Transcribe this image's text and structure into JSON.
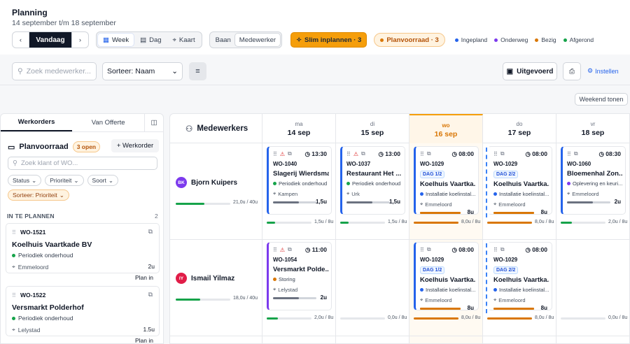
{
  "header": {
    "title": "Planning",
    "subtitle": "14 september t/m 18 september"
  },
  "toolbar": {
    "prev_icon": "chevron-left",
    "today_label": "Vandaag",
    "next_icon": "chevron-right",
    "views": [
      {
        "label": "Week",
        "icon": "grid-icon"
      },
      {
        "label": "Dag",
        "icon": "calendar-icon"
      },
      {
        "label": "Kaart",
        "icon": "map-pin-icon"
      }
    ],
    "active_view": "Week",
    "modes": [
      "Baan",
      "Medewerker"
    ],
    "active_mode": "Medewerker",
    "slim_label": "Slim inplannen · 3",
    "pool_label": "Planvoorraad · 3",
    "legend": [
      {
        "label": "Ingepland",
        "color": "#2563eb"
      },
      {
        "label": "Onderweg",
        "color": "#7c3aed"
      },
      {
        "label": "Bezig",
        "color": "#d97706"
      },
      {
        "label": "Afgerond",
        "color": "#16a34a"
      }
    ]
  },
  "controls": {
    "search_placeholder": "Zoek medewerker...",
    "sort_label": "Sorteer: Naam",
    "done_label": "Uitgevoerd",
    "settings_label": "Instellen",
    "weekend_label": "Weekend tonen"
  },
  "sidebar": {
    "tabs": [
      "Werkorders",
      "Van Offerte"
    ],
    "title": "Planvoorraad",
    "open_badge": "3 open",
    "add_label": "+ Werkorder",
    "search_placeholder": "Zoek klant of WO...",
    "filters": [
      "Status",
      "Prioriteit",
      "Soort"
    ],
    "sort_chip": "Sorteer: Prioriteit",
    "section_label": "IN TE PLANNEN",
    "section_count": "2",
    "items": [
      {
        "number": "WO-1521",
        "name": "Koelhuis Vaartkade BV",
        "type": "Periodiek onderhoud",
        "location": "Emmeloord",
        "hours": "2u",
        "action": "Plan in"
      },
      {
        "number": "WO-1522",
        "name": "Versmarkt Polderhof",
        "type": "Periodiek onderhoud",
        "location": "Lelystad",
        "hours": "1.5u",
        "action": "Plan in"
      }
    ]
  },
  "grid": {
    "employees_label": "Medewerkers",
    "days": [
      {
        "name": "ma",
        "date": "14 sep",
        "today": false
      },
      {
        "name": "di",
        "date": "15 sep",
        "today": false
      },
      {
        "name": "wo",
        "date": "16 sep",
        "today": true
      },
      {
        "name": "do",
        "date": "17 sep",
        "today": false
      },
      {
        "name": "vr",
        "date": "18 sep",
        "today": false
      }
    ],
    "rows": [
      {
        "initials": "BK",
        "name": "Bjorn Kuipers",
        "color": "#7c3aed",
        "load": "21,0u / 40u",
        "load_fraction": 0.525,
        "day_caps": [
          {
            "value": "1,5u / 8u",
            "fraction": 0.19,
            "color": "#16a34a"
          },
          {
            "value": "1,5u / 8u",
            "fraction": 0.19,
            "color": "#16a34a"
          },
          {
            "value": "8,0u / 8u",
            "fraction": 1.0,
            "color": "#d97706"
          },
          {
            "value": "8,0u / 8u",
            "fraction": 1.0,
            "color": "#d97706"
          },
          {
            "value": "2,0u / 8u",
            "fraction": 0.25,
            "color": "#16a34a"
          }
        ],
        "cards": [
          {
            "day": 0,
            "code": "WO-1040",
            "time": "13:30",
            "name": "Slagerij Wierdsma",
            "type": "Periodiek onderhoud",
            "type_color": "#16a34a",
            "location": "Kampen",
            "hours": "1,5u",
            "warn": true,
            "border": "#2563eb",
            "progress": 0.6,
            "dag": ""
          },
          {
            "day": 1,
            "code": "WO-1037",
            "time": "13:00",
            "name": "Restaurant Het ...",
            "type": "Periodiek onderhoud",
            "type_color": "#16a34a",
            "location": "Urk",
            "hours": "1,5u",
            "warn": true,
            "border": "#2563eb",
            "progress": 0.6,
            "dag": ""
          },
          {
            "day": 2,
            "code": "WO-1029",
            "time": "08:00",
            "name": "Koelhuis Vaartka...",
            "type": "Installatie koelinstal...",
            "type_color": "#2563eb",
            "location": "Emmeloord",
            "hours": "8u",
            "warn": false,
            "border": "#2563eb",
            "progress": 1.0,
            "dag": "DAG 1/2"
          },
          {
            "day": 3,
            "code": "WO-1029",
            "time": "08:00",
            "name": "Koelhuis Vaartka...",
            "type": "Installatie koelinstal...",
            "type_color": "#2563eb",
            "location": "Emmeloord",
            "hours": "8u",
            "warn": false,
            "border": "#2563eb",
            "progress": 1.0,
            "dag": "DAG 2/2"
          },
          {
            "day": 4,
            "code": "WO-1060",
            "time": "08:30",
            "name": "Bloemenhal Zon...",
            "type": "Oplevering en keuri...",
            "type_color": "#7c3aed",
            "location": "Emmeloord",
            "hours": "2u",
            "warn": false,
            "border": "#2563eb",
            "progress": 0.6,
            "dag": ""
          }
        ]
      },
      {
        "initials": "IY",
        "name": "Ismail Yilmaz",
        "color": "#e11d48",
        "load": "18,0u / 40u",
        "load_fraction": 0.45,
        "day_caps": [
          {
            "value": "2,0u / 8u",
            "fraction": 0.25,
            "color": "#16a34a"
          },
          {
            "value": "0,0u / 8u",
            "fraction": 0.0,
            "color": "#16a34a"
          },
          {
            "value": "8,0u / 8u",
            "fraction": 1.0,
            "color": "#d97706"
          },
          {
            "value": "8,0u / 8u",
            "fraction": 1.0,
            "color": "#d97706"
          },
          {
            "value": "0,0u / 8u",
            "fraction": 0.0,
            "color": "#16a34a"
          }
        ],
        "cards": [
          {
            "day": 0,
            "code": "WO-1054",
            "time": "11:00",
            "name": "Versmarkt Polde...",
            "type": "Storing",
            "type_color": "#d97706",
            "location": "Lelystad",
            "hours": "2u",
            "warn": true,
            "border": "#7c3aed",
            "progress": 0.6,
            "dag": ""
          },
          {
            "day": 2,
            "code": "WO-1029",
            "time": "08:00",
            "name": "Koelhuis Vaartka...",
            "type": "Installatie koelinstal...",
            "type_color": "#2563eb",
            "location": "Emmeloord",
            "hours": "8u",
            "warn": false,
            "border": "#2563eb",
            "progress": 1.0,
            "dag": "DAG 1/2"
          },
          {
            "day": 3,
            "code": "WO-1029",
            "time": "08:00",
            "name": "Koelhuis Vaartka...",
            "type": "Installatie koelinstal...",
            "type_color": "#2563eb",
            "location": "Emmeloord",
            "hours": "8u",
            "warn": false,
            "border": "#2563eb",
            "progress": 1.0,
            "dag": "DAG 2/2"
          }
        ]
      }
    ]
  }
}
